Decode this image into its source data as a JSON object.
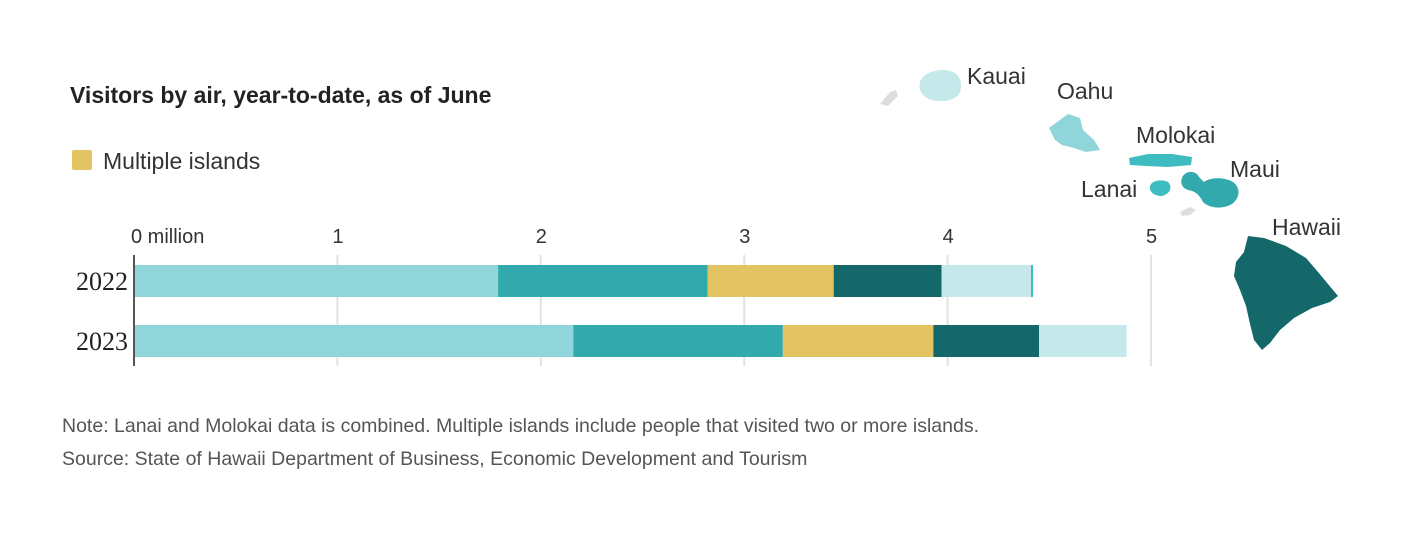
{
  "chart_data": {
    "type": "bar",
    "orientation": "horizontal",
    "stacked": true,
    "title": "Visitors by air, year-to-date, as of June",
    "categories": [
      "2022",
      "2023"
    ],
    "x_ticks": [
      {
        "value": 0,
        "label": "0 million"
      },
      {
        "value": 1,
        "label": "1"
      },
      {
        "value": 2,
        "label": "2"
      },
      {
        "value": 3,
        "label": "3"
      },
      {
        "value": 4,
        "label": "4"
      },
      {
        "value": 5,
        "label": "5"
      }
    ],
    "xlim": [
      0,
      5
    ],
    "grid": true,
    "legend": [
      {
        "label": "Multiple islands",
        "color": "#e2c462"
      }
    ],
    "series": [
      {
        "island": "Oahu",
        "color": "#90d5da",
        "values": [
          1.79,
          2.16
        ]
      },
      {
        "island": "Maui",
        "color": "#31a9ad",
        "values": [
          1.03,
          1.03
        ]
      },
      {
        "name": "Multiple islands",
        "color": "#e2c462",
        "values": [
          0.62,
          0.74
        ]
      },
      {
        "island": "Hawaii",
        "color": "#14686a",
        "values": [
          0.53,
          0.52
        ]
      },
      {
        "island": "Kauai",
        "color": "#c5e8ea",
        "values": [
          0.44,
          0.43
        ]
      },
      {
        "island": "Lanai/Molokai",
        "color": "#3fbcbf",
        "values": [
          0.01,
          0.0
        ]
      }
    ]
  },
  "map": {
    "islands": [
      {
        "name": "Kauai",
        "color": "#c5e8ea"
      },
      {
        "name": "Oahu",
        "color": "#90d5da"
      },
      {
        "name": "Molokai",
        "color": "#3fbcbf"
      },
      {
        "name": "Lanai",
        "color": "#3fbcbf"
      },
      {
        "name": "Maui",
        "color": "#31a9ad"
      },
      {
        "name": "Hawaii",
        "color": "#14686a"
      }
    ],
    "unlabeled_color": "#dddddd"
  },
  "notes": {
    "note": "Note: Lanai and Molokai data is combined. Multiple islands include people that visited two or more islands.",
    "source": "Source: State of Hawaii Department of Business, Economic Development and Tourism"
  }
}
